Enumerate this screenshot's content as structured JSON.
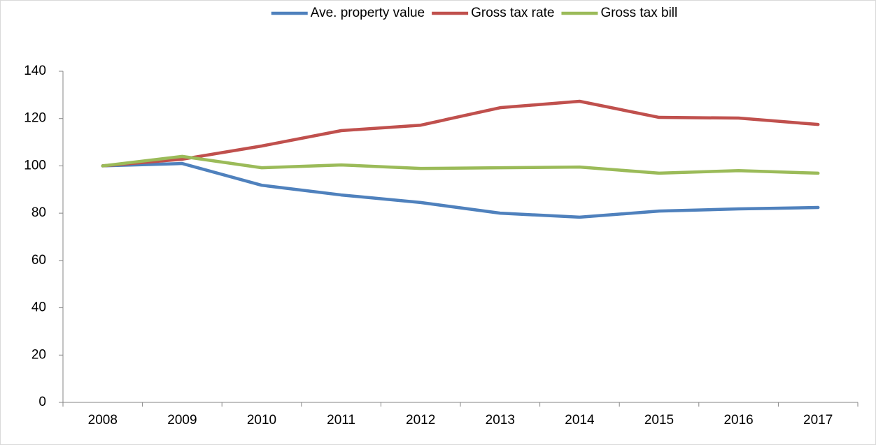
{
  "chart_data": {
    "type": "line",
    "categories": [
      "2008",
      "2009",
      "2010",
      "2011",
      "2012",
      "2013",
      "2014",
      "2015",
      "2016",
      "2017"
    ],
    "series": [
      {
        "name": "Ave. property value",
        "color": "#4f81bd",
        "values": [
          100,
          101,
          91.8,
          87.7,
          84.5,
          80,
          78.3,
          80.9,
          81.8,
          82.4
        ]
      },
      {
        "name": "Gross tax rate",
        "color": "#c0504d",
        "values": [
          100,
          102.8,
          108.4,
          114.9,
          117.2,
          124.6,
          127.3,
          120.5,
          120.2,
          117.5
        ]
      },
      {
        "name": "Gross tax bill",
        "color": "#9bbb59",
        "values": [
          100,
          104,
          99.2,
          100.4,
          98.9,
          99.2,
          99.5,
          96.9,
          98,
          96.9
        ]
      }
    ],
    "ylim": [
      0,
      140
    ],
    "yticks": [
      0,
      20,
      40,
      60,
      80,
      100,
      120,
      140
    ],
    "grid": false,
    "legend": "top"
  }
}
